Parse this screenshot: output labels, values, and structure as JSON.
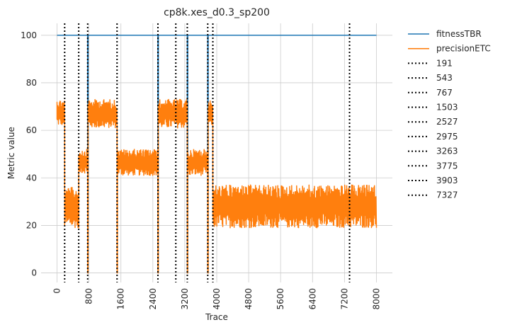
{
  "chart_data": {
    "type": "line",
    "title": "cp8k.xes_d0.3_sp200",
    "xlabel": "Trace",
    "ylabel": "Metric value",
    "xlim": [
      -400,
      8400
    ],
    "ylim": [
      -4,
      105
    ],
    "x_ticks": [
      0,
      800,
      1600,
      2400,
      3200,
      4000,
      4800,
      5600,
      6400,
      7200,
      8000
    ],
    "x_tick_labels": [
      "0",
      "800",
      "1600",
      "2400",
      "3200",
      "4000",
      "4800",
      "5600",
      "6400",
      "7200",
      "8000"
    ],
    "y_ticks": [
      0,
      20,
      40,
      60,
      80,
      100
    ],
    "y_tick_labels": [
      "0",
      "20",
      "40",
      "60",
      "80",
      "100"
    ],
    "grid": true,
    "legend_placement": "outside-right",
    "series": [
      {
        "name": "fitnessTBR",
        "color": "#1f77b4",
        "style": "solid",
        "x": [
          0,
          766,
          767,
          777,
          778,
          2526,
          2527,
          2537,
          2538,
          3262,
          3263,
          3273,
          3274,
          3774,
          3775,
          3785,
          3786,
          8000
        ],
        "y": [
          100,
          100,
          0,
          0,
          100,
          100,
          0,
          0,
          100,
          100,
          0,
          0,
          100,
          100,
          0,
          0,
          100,
          100
        ]
      },
      {
        "name": "precisionETC",
        "color": "#ff7f0e",
        "style": "noisy-band",
        "segments": [
          {
            "x": [
              0,
              191
            ],
            "low": 62,
            "high": 73
          },
          {
            "x": [
              191,
              543
            ],
            "low": 19,
            "high": 36
          },
          {
            "x": [
              543,
              767
            ],
            "low": 42,
            "high": 52
          },
          {
            "x": [
              767,
              777
            ],
            "value": 0
          },
          {
            "x": [
              777,
              1503
            ],
            "low": 61,
            "high": 73
          },
          {
            "x": [
              1503,
              1513
            ],
            "value": 0
          },
          {
            "x": [
              1513,
              2527
            ],
            "low": 41,
            "high": 52
          },
          {
            "x": [
              2527,
              2537
            ],
            "value": 0
          },
          {
            "x": [
              2537,
              3263
            ],
            "low": 61,
            "high": 73
          },
          {
            "x": [
              3263,
              3273
            ],
            "value": 0
          },
          {
            "x": [
              3273,
              3775
            ],
            "low": 41,
            "high": 52
          },
          {
            "x": [
              3775,
              3785
            ],
            "value": 0
          },
          {
            "x": [
              3785,
              3903
            ],
            "low": 62,
            "high": 73
          },
          {
            "x": [
              3903,
              8000
            ],
            "low": 19,
            "high": 37
          }
        ]
      }
    ],
    "vlines": [
      {
        "label": "191",
        "x": 191
      },
      {
        "label": "543",
        "x": 543
      },
      {
        "label": "767",
        "x": 767
      },
      {
        "label": "1503",
        "x": 1503
      },
      {
        "label": "2527",
        "x": 2527
      },
      {
        "label": "2975",
        "x": 2975
      },
      {
        "label": "3263",
        "x": 3263
      },
      {
        "label": "3775",
        "x": 3775
      },
      {
        "label": "3903",
        "x": 3903
      },
      {
        "label": "7327",
        "x": 7327
      }
    ],
    "colors": {
      "axes_bg": "#ffffff",
      "grid": "#cccccc",
      "vline": "#000000",
      "text": "#262626"
    }
  }
}
